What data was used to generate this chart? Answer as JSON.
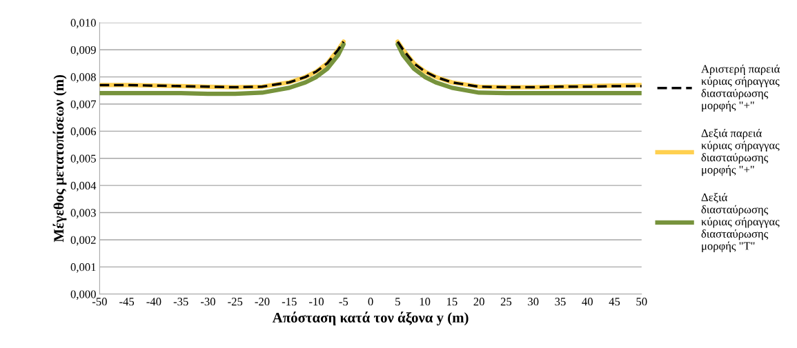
{
  "chart_data": {
    "type": "line",
    "xlabel": "Απόσταση κατά τον άξονα y (m)",
    "ylabel": "Μέγεθος μετατοπίσεων (m)",
    "x": [
      -50,
      -45,
      -40,
      -35,
      -30,
      -25,
      -20,
      -15,
      -12,
      -10,
      -8,
      -6,
      -5,
      0,
      5,
      6,
      8,
      10,
      12,
      15,
      20,
      25,
      30,
      35,
      40,
      45,
      50
    ],
    "series": [
      {
        "name": "Αριστερή παρειά κύριας σήραγγας διασταύρωσης μορφής \"+\"",
        "color": "#000000",
        "line_style": "dashed",
        "values": [
          0.0077,
          0.0077,
          0.00768,
          0.00766,
          0.00764,
          0.00762,
          0.00764,
          0.0078,
          0.008,
          0.0082,
          0.0085,
          0.009,
          0.0093,
          null,
          0.0093,
          0.009,
          0.0085,
          0.0082,
          0.008,
          0.0078,
          0.00764,
          0.00762,
          0.00762,
          0.00764,
          0.00764,
          0.00766,
          0.00766
        ]
      },
      {
        "name": "Δεξιά παρειά κύριας σήραγγας διασταύρωσης μορφής \"+\"",
        "color": "#ffd050",
        "line_style": "solid",
        "values": [
          0.0077,
          0.0077,
          0.00768,
          0.00766,
          0.00764,
          0.00762,
          0.00764,
          0.0078,
          0.008,
          0.0082,
          0.0085,
          0.009,
          0.0093,
          null,
          0.0093,
          0.009,
          0.0085,
          0.0082,
          0.008,
          0.0078,
          0.00764,
          0.00762,
          0.00762,
          0.00764,
          0.00766,
          0.00768,
          0.0077
        ]
      },
      {
        "name": "Δεξιά διασταύρωσης κύριας σήραγγας διασταύρωσης μορφής \"Τ\"",
        "color": "#77933c",
        "line_style": "solid",
        "values": [
          0.0074,
          0.0074,
          0.0074,
          0.0074,
          0.00738,
          0.00738,
          0.00742,
          0.0076,
          0.0078,
          0.008,
          0.0083,
          0.0088,
          0.0092,
          null,
          0.0092,
          0.0088,
          0.0083,
          0.008,
          0.0078,
          0.0076,
          0.00742,
          0.0074,
          0.0074,
          0.0074,
          0.0074,
          0.0074,
          0.0074
        ]
      }
    ],
    "xlim": [
      -50,
      50
    ],
    "xticks": [
      -50,
      -45,
      -40,
      -35,
      -30,
      -25,
      -20,
      -15,
      -10,
      -5,
      0,
      5,
      10,
      15,
      20,
      25,
      30,
      35,
      40,
      45,
      50
    ],
    "ylim": [
      0,
      0.01
    ],
    "yticks": [
      {
        "value": 0,
        "label": "0,000"
      },
      {
        "value": 0.001,
        "label": "0,001"
      },
      {
        "value": 0.002,
        "label": "0,002"
      },
      {
        "value": 0.003,
        "label": "0,003"
      },
      {
        "value": 0.004,
        "label": "0,004"
      },
      {
        "value": 0.005,
        "label": "0,005"
      },
      {
        "value": 0.006,
        "label": "0,006"
      },
      {
        "value": 0.007,
        "label": "0,007"
      },
      {
        "value": 0.008,
        "label": "0,008"
      },
      {
        "value": 0.009,
        "label": "0,009"
      },
      {
        "value": 0.01,
        "label": "0,010"
      }
    ],
    "grid": "y",
    "legend": "right",
    "marker": "none"
  }
}
